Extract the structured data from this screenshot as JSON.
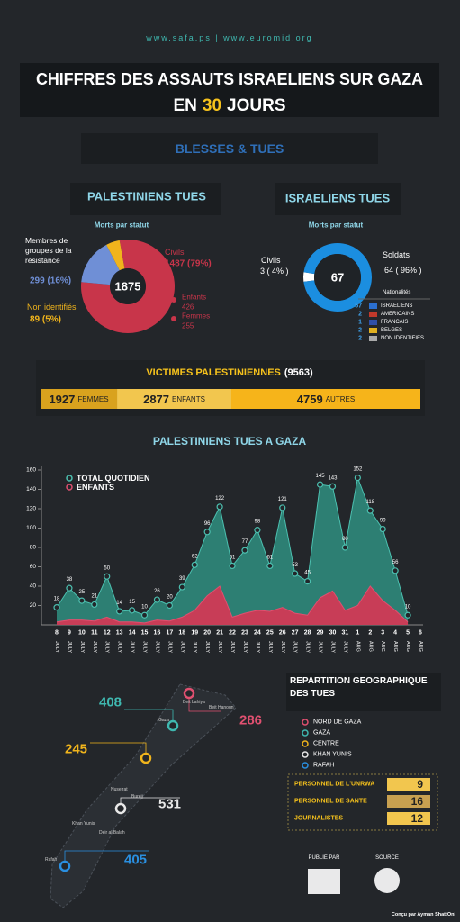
{
  "header": {
    "websites": "www.safa.ps  |  www.euromid.org",
    "title_line1": "CHIFFRES DES ASSAUTS ISRAELIENS SUR GAZA",
    "title_line2": [
      "EN",
      "30",
      "JOURS"
    ],
    "subtitle": "BLESSES & TUES"
  },
  "palestinians": {
    "title": "PALESTINIENS TUES",
    "subtitle": "Morts par statut",
    "total": 1875,
    "segments": [
      {
        "name": "Civils",
        "value": 1487,
        "label": "1487 (79%)",
        "color": "#c8354a"
      },
      {
        "name": "Membres de groupes de la résistance",
        "value": 299,
        "label": "299 (16%)",
        "color": "#6f8fd6"
      },
      {
        "name": "Non identifiés",
        "value": 89,
        "label": "89 (5%)",
        "color": "#f0b41c"
      }
    ],
    "civil_breakdown": [
      {
        "name": "Enfants",
        "value": 426
      },
      {
        "name": "Femmes",
        "value": 255
      }
    ]
  },
  "israelis": {
    "title": "ISRAELIENS TUES",
    "subtitle": "Morts par statut",
    "total": 67,
    "segments": [
      {
        "name": "Civils",
        "value": 3,
        "label": "3 ( 4% )",
        "color": "#ffffff"
      },
      {
        "name": "Soldats",
        "value": 64,
        "label": "64 ( 96% )",
        "color": "#1b8ee0"
      }
    ],
    "nationalities_title": "Nationalités",
    "nationalities": [
      {
        "value": 57,
        "name": "ISRAELIENS",
        "color": "#2b6fd0"
      },
      {
        "value": 2,
        "name": "AMERICAINS",
        "color": "#c0392b"
      },
      {
        "value": 1,
        "name": "FRANCAIS",
        "color": "#2f4fa8"
      },
      {
        "value": 2,
        "name": "BELGES",
        "color": "#e0b020"
      },
      {
        "value": 2,
        "name": "NON IDENTIFIES",
        "color": "#aaaaaa"
      }
    ]
  },
  "victims": {
    "title": "VICTIMES PALESTINIENNES",
    "total": {
      "value": 9563,
      "label": "(9563)"
    },
    "segments": [
      {
        "value": 1927,
        "name": "FEMMES",
        "color": "#d9a21e"
      },
      {
        "value": 2877,
        "name": "ENFANTS",
        "color": "#f2c64e"
      },
      {
        "value": 4759,
        "name": "AUTRES",
        "color": "#f6b41a"
      }
    ]
  },
  "chart_data": {
    "type": "area",
    "title": "PALESTINIENS TUES A GAZA",
    "categories": [
      "8",
      "9",
      "10",
      "11",
      "12",
      "13",
      "14",
      "15",
      "16",
      "17",
      "18",
      "19",
      "20",
      "21",
      "22",
      "23",
      "24",
      "25",
      "26",
      "27",
      "28",
      "29",
      "30",
      "31",
      "1",
      "2",
      "3",
      "4",
      "5",
      "6"
    ],
    "months": [
      "JULY",
      "JULY",
      "JULY",
      "JULY",
      "JULY",
      "JULY",
      "JULY",
      "JULY",
      "JULY",
      "JULY",
      "JULY",
      "JULY",
      "JULY",
      "JULY",
      "JULY",
      "JULY",
      "JULY",
      "JULY",
      "JULY",
      "JULY",
      "JULY",
      "JULY",
      "JULY",
      "JULY",
      "AUG",
      "AUG",
      "AUG",
      "AUG",
      "AUG",
      "AUG"
    ],
    "series": [
      {
        "name": "TOTAL QUOTIDIEN",
        "color": "#2f8f80",
        "values": [
          18,
          38,
          25,
          21,
          50,
          14,
          15,
          10,
          26,
          20,
          39,
          62,
          96,
          122,
          61,
          77,
          98,
          61,
          121,
          53,
          45,
          145,
          143,
          80,
          152,
          118,
          99,
          56,
          10,
          null
        ]
      },
      {
        "name": "ENFANTS",
        "color": "#d13a55",
        "values": [
          3,
          5,
          5,
          4,
          8,
          3,
          3,
          2,
          5,
          4,
          8,
          15,
          30,
          40,
          8,
          12,
          15,
          14,
          18,
          12,
          10,
          28,
          35,
          15,
          20,
          40,
          25,
          15,
          3,
          null
        ]
      }
    ],
    "ylim": [
      0,
      160
    ],
    "yticks": [
      20,
      40,
      60,
      80,
      100,
      120,
      140,
      160
    ],
    "legend": "top-left"
  },
  "geography": {
    "title": "REPARTITION GEOGRAPHIQUE DES TUES",
    "regions": [
      {
        "name": "NORD DE GAZA",
        "value": 286,
        "color": "#e05070"
      },
      {
        "name": "GAZA",
        "value": 408,
        "color": "#3fb8b0"
      },
      {
        "name": "CENTRE",
        "value": 245,
        "color": "#f0b41c"
      },
      {
        "name": "KHAN YUNIS",
        "value": 531,
        "color": "#e8e8e8"
      },
      {
        "name": "RAFAH",
        "value": 405,
        "color": "#2a8fe0"
      }
    ],
    "places": [
      "Beit Lahiya",
      "Beit Hanoun",
      "Gaza",
      "Nuseirat",
      "Bureij",
      "Deir al Balah",
      "Khan Yunis",
      "Rafah"
    ]
  },
  "staff": {
    "rows": [
      {
        "name": "PERSONNEL DE L'UNRWA",
        "value": 9
      },
      {
        "name": "PERSONNEL DE SANTE",
        "value": 16
      },
      {
        "name": "JOURNALISTES",
        "value": 12
      }
    ]
  },
  "footer": {
    "published_by": "PUBLIE PAR",
    "source": "SOURCE",
    "credit": "Conçu par Ayman ShattOni"
  }
}
